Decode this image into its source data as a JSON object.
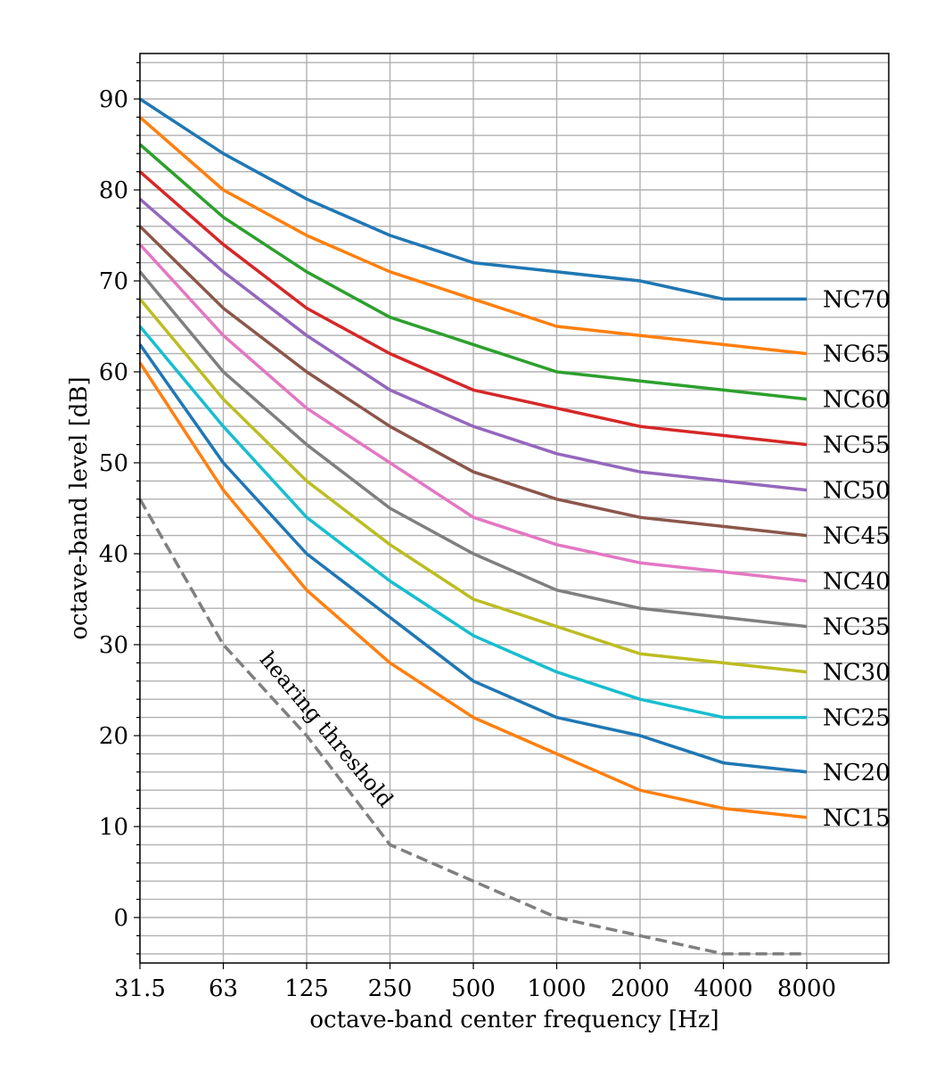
{
  "chart_data": {
    "type": "line",
    "title": "",
    "xlabel": "octave-band center frequency [Hz]",
    "ylabel": "octave-band level [dB]",
    "x_scale": "log2 (octave bands)",
    "categories": [
      "31.5",
      "63",
      "125",
      "250",
      "500",
      "1000",
      "2000",
      "4000",
      "8000"
    ],
    "x_values": [
      31.5,
      63,
      125,
      250,
      500,
      1000,
      2000,
      4000,
      8000
    ],
    "xlim": [
      31.5,
      16000
    ],
    "ylim": [
      -5,
      95
    ],
    "yticks": [
      "0",
      "10",
      "20",
      "30",
      "40",
      "50",
      "60",
      "70",
      "80",
      "90"
    ],
    "grid": "major and minor (2 dB)",
    "series": [
      {
        "name": "NC70",
        "color": "#1f77b4",
        "values": [
          90,
          84,
          79,
          75,
          72,
          71,
          70,
          68,
          68
        ]
      },
      {
        "name": "NC65",
        "color": "#ff7f0e",
        "values": [
          88,
          80,
          75,
          71,
          68,
          65,
          64,
          63,
          62
        ]
      },
      {
        "name": "NC60",
        "color": "#2ca02c",
        "values": [
          85,
          77,
          71,
          66,
          63,
          60,
          59,
          58,
          57
        ]
      },
      {
        "name": "NC55",
        "color": "#d62728",
        "values": [
          82,
          74,
          67,
          62,
          58,
          56,
          54,
          53,
          52
        ]
      },
      {
        "name": "NC50",
        "color": "#9467bd",
        "values": [
          79,
          71,
          64,
          58,
          54,
          51,
          49,
          48,
          47
        ]
      },
      {
        "name": "NC45",
        "color": "#8c564b",
        "values": [
          76,
          67,
          60,
          54,
          49,
          46,
          44,
          43,
          42
        ]
      },
      {
        "name": "NC40",
        "color": "#e377c2",
        "values": [
          74,
          64,
          56,
          50,
          44,
          41,
          39,
          38,
          37
        ]
      },
      {
        "name": "NC35",
        "color": "#7f7f7f",
        "values": [
          71,
          60,
          52,
          45,
          40,
          36,
          34,
          33,
          32
        ]
      },
      {
        "name": "NC30",
        "color": "#bcbd22",
        "values": [
          68,
          57,
          48,
          41,
          35,
          32,
          29,
          28,
          27
        ]
      },
      {
        "name": "NC25",
        "color": "#17becf",
        "values": [
          65,
          54,
          44,
          37,
          31,
          27,
          24,
          22,
          22
        ]
      },
      {
        "name": "NC20",
        "color": "#1f77b4",
        "values": [
          63,
          50,
          40,
          33,
          26,
          22,
          20,
          17,
          16
        ]
      },
      {
        "name": "NC15",
        "color": "#ff7f0e",
        "values": [
          61,
          47,
          36,
          28,
          22,
          18,
          14,
          12,
          11
        ]
      }
    ],
    "threshold": {
      "label": "hearing threshold",
      "color": "#7f7f7f",
      "style": "dashed",
      "values": [
        46,
        30,
        20,
        8,
        4,
        0,
        -2,
        -4,
        -4
      ]
    }
  }
}
